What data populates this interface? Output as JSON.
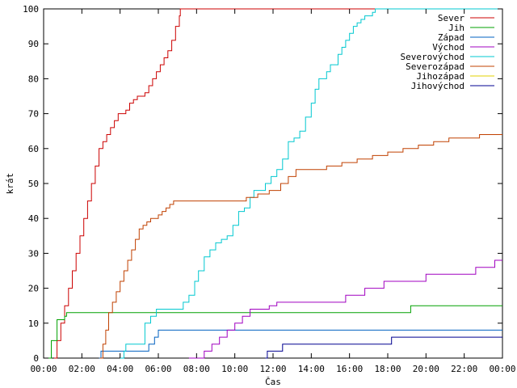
{
  "chart_data": {
    "type": "line",
    "title": "",
    "xlabel": "Čas",
    "ylabel": "krát",
    "xlim": [
      0,
      24
    ],
    "ylim": [
      0,
      100
    ],
    "x_ticks": [
      {
        "v": 0,
        "label": "00:00"
      },
      {
        "v": 2,
        "label": "02:00"
      },
      {
        "v": 4,
        "label": "04:00"
      },
      {
        "v": 6,
        "label": "06:00"
      },
      {
        "v": 8,
        "label": "08:00"
      },
      {
        "v": 10,
        "label": "10:00"
      },
      {
        "v": 12,
        "label": "12:00"
      },
      {
        "v": 14,
        "label": "14:00"
      },
      {
        "v": 16,
        "label": "16:00"
      },
      {
        "v": 18,
        "label": "18:00"
      },
      {
        "v": 20,
        "label": "20:00"
      },
      {
        "v": 22,
        "label": "22:00"
      },
      {
        "v": 24,
        "label": "00:00"
      }
    ],
    "y_ticks": [
      0,
      10,
      20,
      30,
      40,
      50,
      60,
      70,
      80,
      90,
      100
    ],
    "grid": false,
    "legend_position": "top-right",
    "series": [
      {
        "name": "Sever",
        "color": "#cc0000",
        "step": true,
        "x": [
          0.55,
          0.7,
          0.9,
          1.1,
          1.3,
          1.5,
          1.7,
          1.9,
          2.1,
          2.3,
          2.5,
          2.7,
          2.9,
          3.1,
          3.3,
          3.5,
          3.7,
          3.9,
          4.1,
          4.3,
          4.5,
          4.7,
          4.9,
          5.1,
          5.3,
          5.5,
          5.7,
          5.9,
          6.1,
          6.3,
          6.5,
          6.7,
          6.9,
          7.1,
          7.15,
          24
        ],
        "y": [
          0,
          5,
          10,
          15,
          20,
          25,
          30,
          35,
          40,
          45,
          50,
          55,
          60,
          62,
          64,
          66,
          68,
          70,
          70,
          71,
          73,
          74,
          75,
          75,
          76,
          78,
          80,
          82,
          84,
          86,
          88,
          91,
          95,
          98,
          100,
          100
        ]
      },
      {
        "name": "Jih",
        "color": "#00a000",
        "step": true,
        "x": [
          0.15,
          0.4,
          0.7,
          1.1,
          1.2,
          19.2,
          24
        ],
        "y": [
          0,
          5,
          11,
          12,
          13,
          15,
          15
        ]
      },
      {
        "name": "Západ",
        "color": "#0060c0",
        "step": true,
        "x": [
          2.9,
          3.0,
          5.5,
          5.8,
          6.0,
          24
        ],
        "y": [
          0,
          2,
          4,
          6,
          8,
          8
        ]
      },
      {
        "name": "Východ",
        "color": "#a000c0",
        "step": true,
        "x": [
          7.6,
          8.4,
          8.8,
          9.2,
          9.6,
          10.0,
          10.4,
          10.8,
          11.4,
          11.8,
          12.2,
          12.6,
          13.0,
          13.6,
          14.4,
          15.0,
          15.8,
          16.4,
          16.8,
          17.2,
          17.8,
          18.6,
          19.0,
          19.4,
          20.0,
          21.0,
          21.4,
          21.8,
          22.2,
          22.6,
          23.2,
          23.6,
          24.0
        ],
        "y": [
          0,
          2,
          4,
          6,
          8,
          10,
          12,
          14,
          14,
          15,
          16,
          16,
          16,
          16,
          16,
          16,
          18,
          18,
          20,
          20,
          22,
          22,
          22,
          22,
          24,
          24,
          24,
          24,
          24,
          26,
          26,
          28,
          28
        ]
      },
      {
        "name": "Severovýchod",
        "color": "#00c8d0",
        "step": true,
        "x": [
          4.0,
          4.2,
          4.3,
          5.3,
          5.6,
          5.9,
          6.1,
          7.3,
          7.6,
          7.9,
          8.1,
          8.4,
          8.7,
          9.0,
          9.3,
          9.6,
          9.9,
          10.2,
          10.5,
          10.8,
          11.0,
          11.3,
          11.6,
          11.9,
          12.2,
          12.5,
          12.8,
          13.1,
          13.4,
          13.7,
          14.0,
          14.2,
          14.4,
          14.6,
          14.8,
          15.0,
          15.2,
          15.4,
          15.6,
          15.8,
          16.0,
          16.2,
          16.4,
          16.6,
          16.8,
          17.0,
          17.2,
          17.35,
          24
        ],
        "y": [
          0,
          2,
          4,
          10,
          12,
          14,
          14,
          16,
          18,
          22,
          25,
          29,
          31,
          33,
          34,
          35,
          38,
          42,
          43,
          46,
          48,
          48,
          50,
          52,
          54,
          57,
          62,
          63,
          65,
          69,
          73,
          77,
          80,
          80,
          82,
          84,
          84,
          87,
          89,
          91,
          93,
          95,
          96,
          97,
          98,
          98,
          99,
          100,
          100
        ]
      },
      {
        "name": "Severozápad",
        "color": "#c04000",
        "step": true,
        "x": [
          2.95,
          3.1,
          3.25,
          3.4,
          3.6,
          3.8,
          4.0,
          4.2,
          4.4,
          4.6,
          4.8,
          5.0,
          5.2,
          5.4,
          5.6,
          5.8,
          6.0,
          6.2,
          6.4,
          6.6,
          6.8,
          7.0,
          10.6,
          11.2,
          11.8,
          12.4,
          12.8,
          13.2,
          14.0,
          14.8,
          15.6,
          16.4,
          17.2,
          18.0,
          18.8,
          19.6,
          20.4,
          21.2,
          22.0,
          22.8,
          24.0
        ],
        "y": [
          0,
          4,
          8,
          13,
          16,
          19,
          22,
          25,
          28,
          31,
          34,
          37,
          38,
          39,
          40,
          40,
          41,
          42,
          43,
          44,
          45,
          45,
          46,
          47,
          48,
          50,
          52,
          54,
          54,
          55,
          56,
          57,
          58,
          59,
          60,
          61,
          62,
          63,
          63,
          64,
          64
        ]
      },
      {
        "name": "Jihozápad",
        "color": "#e0d000",
        "step": true,
        "x": [],
        "y": []
      },
      {
        "name": "Jihovýchod",
        "color": "#000090",
        "step": true,
        "x": [
          11.6,
          11.7,
          12.5,
          13.8,
          14.5,
          17.8,
          18.2,
          24.0
        ],
        "y": [
          0,
          2,
          4,
          4,
          4,
          4,
          6,
          6
        ]
      }
    ]
  }
}
